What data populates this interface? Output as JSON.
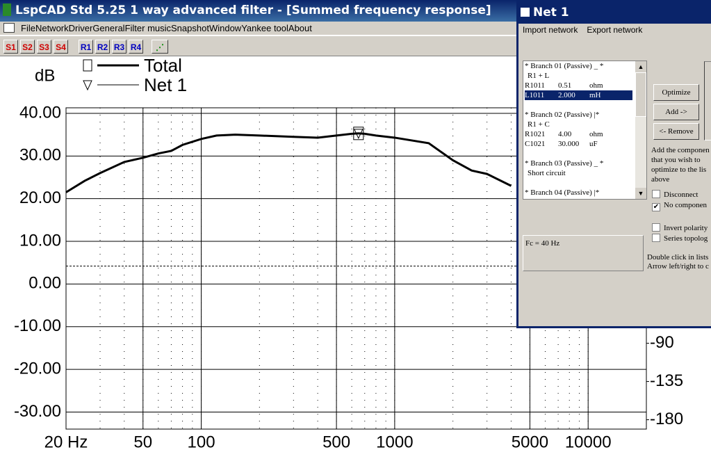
{
  "window": {
    "title": "LspCAD Std 5.25 1 way advanced filter - [Summed frequency response]",
    "menu": [
      "File",
      "Network",
      "Driver",
      "General",
      "Filter music",
      "Snapshot",
      "Window",
      "Yankee tool",
      "About"
    ],
    "toolbar": {
      "sections": [
        "S1",
        "S2",
        "S3",
        "S4"
      ],
      "responses": [
        "R1",
        "R2",
        "R3",
        "R4"
      ]
    }
  },
  "chart_data": {
    "type": "line",
    "y_label": "dB",
    "log_x": true,
    "grid": true,
    "minor_grid": true,
    "x": [
      20,
      25,
      30,
      40,
      50,
      60,
      70,
      80,
      100,
      120,
      150,
      200,
      300,
      400,
      500,
      600,
      650,
      700,
      800,
      1000,
      1500,
      2000,
      2500,
      3000,
      4000
    ],
    "series": [
      {
        "name": "Total",
        "color": "#000000",
        "marker": "square",
        "values": [
          21.5,
          24.2,
          26,
          28.6,
          29.6,
          30.6,
          31.2,
          32.6,
          34,
          34.8,
          35,
          34.8,
          34.5,
          34.3,
          34.8,
          35.2,
          35.3,
          35.2,
          34.8,
          34.3,
          33,
          29,
          26.6,
          25.8,
          23
        ]
      },
      {
        "name": "Net 1",
        "color": "#000000",
        "marker": "triangle",
        "x": [
          650
        ],
        "values": [
          35.3
        ]
      }
    ],
    "hlines": [
      4.2
    ],
    "xlim": [
      20,
      20000
    ],
    "xticks": [
      {
        "value": 20,
        "label": "20 Hz"
      },
      50,
      100,
      500,
      1000,
      5000,
      10000
    ],
    "ylim": [
      -34,
      41.3
    ],
    "yticks": [
      {
        "value": 40,
        "label": "40.00"
      },
      {
        "value": 30,
        "label": "30.00"
      },
      {
        "value": 20,
        "label": "20.00"
      },
      {
        "value": 10,
        "label": "10.00"
      },
      {
        "value": 0,
        "label": "0.00"
      },
      {
        "value": -10,
        "label": "-10.00"
      },
      {
        "value": -20,
        "label": "-20.00"
      },
      {
        "value": -30,
        "label": "-30.00"
      }
    ],
    "y2lim": [
      -191,
      187
    ],
    "y2ticks": [
      -90,
      -135,
      -180
    ]
  },
  "dialog": {
    "title": "Net 1",
    "menu": [
      "Import network",
      "Export network"
    ],
    "branches": [
      [
        [
          "* Branch 01 (Passive) _ *"
        ],
        [
          "R1 + L"
        ],
        [
          "R1011",
          "0.51",
          "ohm"
        ],
        [
          "L1011",
          "2.000",
          "mH"
        ]
      ],
      [
        [
          "* Branch 02 (Passive) |*"
        ],
        [
          "R1 + C"
        ],
        [
          "R1021",
          "4.00",
          "ohm"
        ],
        [
          "C1021",
          "30.000",
          "uF"
        ]
      ],
      [
        [
          "* Branch 03 (Passive) _ *"
        ],
        [
          "Short circuit"
        ]
      ],
      [
        [
          "* Branch 04 (Passive) |*"
        ]
      ]
    ],
    "selected": [
      0,
      3
    ],
    "buttons": [
      "Optimize",
      "Add ->",
      "<- Remove"
    ],
    "help": [
      "Add the componen",
      "that you wish to",
      "optimize to the lis",
      "above"
    ],
    "checkboxes": [
      {
        "label": "Disconnect",
        "checked": false
      },
      {
        "label": "No componen",
        "checked": true
      },
      {
        "label": "Invert polarity",
        "checked": false
      },
      {
        "label": "Series topolog",
        "checked": false
      }
    ],
    "status": "Fc = 40 Hz",
    "hint": [
      "Double click in lists",
      "Arrow left/right to c"
    ]
  }
}
